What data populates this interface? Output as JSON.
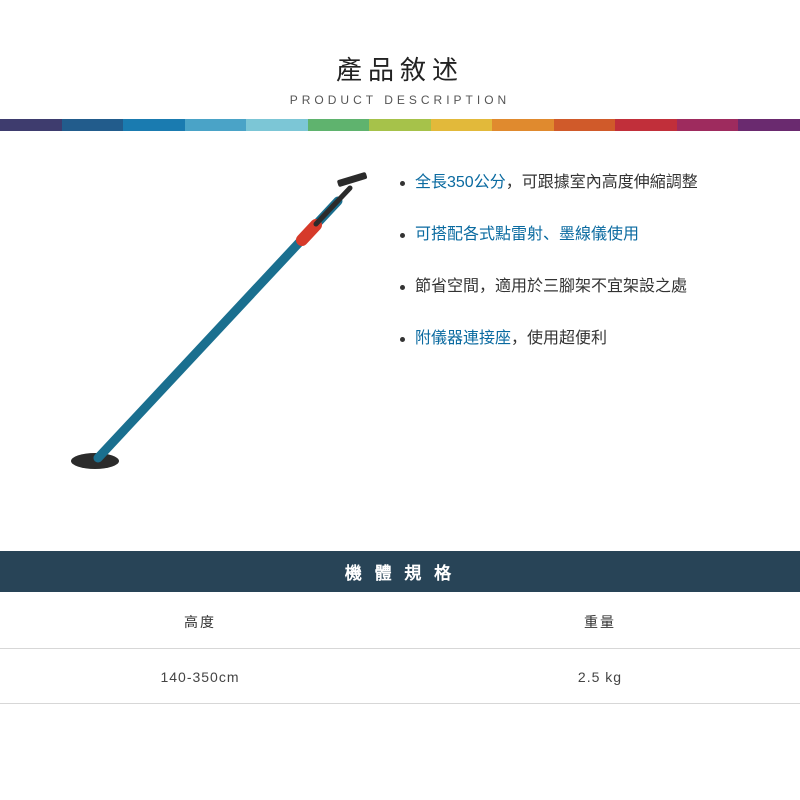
{
  "header": {
    "title_cn": "產品敘述",
    "title_en": "PRODUCT DESCRIPTION"
  },
  "rainbow_colors": [
    "#3e3c6e",
    "#225c8c",
    "#1a7bb0",
    "#4aa3c7",
    "#7cc6d6",
    "#5fb36e",
    "#a6c24a",
    "#e2b93a",
    "#e08a2e",
    "#d05a2a",
    "#c12f3a",
    "#9e2b5e",
    "#6a2a6f"
  ],
  "product_image": {
    "pole_color": "#1a6f8f",
    "grip_color": "#d63a2a",
    "foot_color": "#2b2b2b",
    "cap_color": "#2b2b2b"
  },
  "features": [
    {
      "segments": [
        {
          "text": "全長350公分",
          "highlight": true
        },
        {
          "text": "，可跟據室內高度伸縮調整",
          "highlight": false
        }
      ]
    },
    {
      "segments": [
        {
          "text": "可搭配各式點雷射、墨線儀使用",
          "highlight": true
        }
      ]
    },
    {
      "segments": [
        {
          "text": "節省空間，適用於三腳架不宜架設之處",
          "highlight": false
        }
      ]
    },
    {
      "segments": [
        {
          "text": "附儀器連接座",
          "highlight": true
        },
        {
          "text": "，使用超便利",
          "highlight": false
        }
      ]
    }
  ],
  "spec": {
    "title": "機 體 規 格",
    "columns": [
      "高度",
      "重量"
    ],
    "rows": [
      [
        "140-350cm",
        "2.5 kg"
      ]
    ]
  }
}
